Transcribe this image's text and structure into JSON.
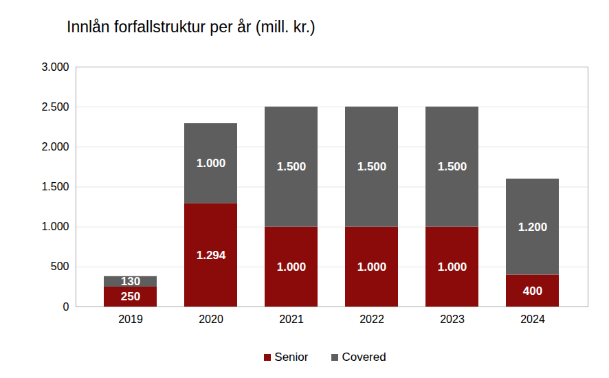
{
  "chart_data": {
    "type": "bar",
    "title": "Innlån forfallstruktur per år (mill. kr.)",
    "categories": [
      "2019",
      "2020",
      "2021",
      "2022",
      "2023",
      "2024"
    ],
    "series": [
      {
        "name": "Senior",
        "color": "#8b0a0a",
        "values": [
          250,
          1294,
          1000,
          1000,
          1000,
          400
        ],
        "value_labels": [
          "250",
          "1.294",
          "1.000",
          "1.000",
          "1.000",
          "400"
        ]
      },
      {
        "name": "Covered",
        "color": "#5e5e5e",
        "values": [
          130,
          1000,
          1500,
          1500,
          1500,
          1200
        ],
        "value_labels": [
          "130",
          "1.000",
          "1.500",
          "1.500",
          "1.500",
          "1.200"
        ]
      }
    ],
    "stacked": true,
    "data_labels": true,
    "ylim": [
      0,
      3000
    ],
    "yticks": [
      0,
      500,
      {
        "value": 1000,
        "label": "1.000"
      },
      {
        "value": 1500,
        "label": "1.500"
      },
      {
        "value": 2000,
        "label": "2.000"
      },
      {
        "value": 2500,
        "label": "2.500"
      },
      {
        "value": 3000,
        "label": "3.000"
      }
    ],
    "grid": true,
    "legend": "bottom"
  }
}
